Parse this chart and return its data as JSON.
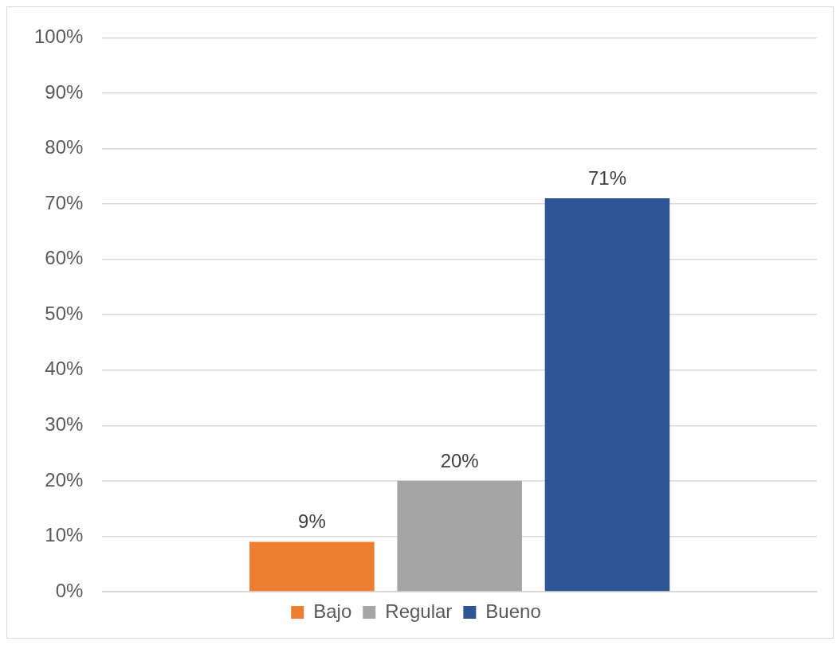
{
  "chart_data": {
    "type": "bar",
    "categories": [
      null
    ],
    "series": [
      {
        "name": "Bajo",
        "color": "#ed7d31",
        "values": [
          9
        ],
        "value_labels": [
          "9%"
        ]
      },
      {
        "name": "Regular",
        "color": "#a5a5a5",
        "values": [
          20
        ],
        "value_labels": [
          "20%"
        ]
      },
      {
        "name": "Bueno",
        "color": "#2f5597",
        "values": [
          71
        ],
        "value_labels": [
          "71%"
        ]
      }
    ],
    "ylim": [
      0,
      100
    ],
    "yticks": [
      {
        "value": 0,
        "label": "0%"
      },
      {
        "value": 10,
        "label": "10%"
      },
      {
        "value": 20,
        "label": "20%"
      },
      {
        "value": 30,
        "label": "30%"
      },
      {
        "value": 40,
        "label": "40%"
      },
      {
        "value": 50,
        "label": "50%"
      },
      {
        "value": 60,
        "label": "60%"
      },
      {
        "value": 70,
        "label": "70%"
      },
      {
        "value": 80,
        "label": "80%"
      },
      {
        "value": 90,
        "label": "90%"
      },
      {
        "value": 100,
        "label": "100%"
      }
    ],
    "grid": "y",
    "legend": "bottom"
  }
}
